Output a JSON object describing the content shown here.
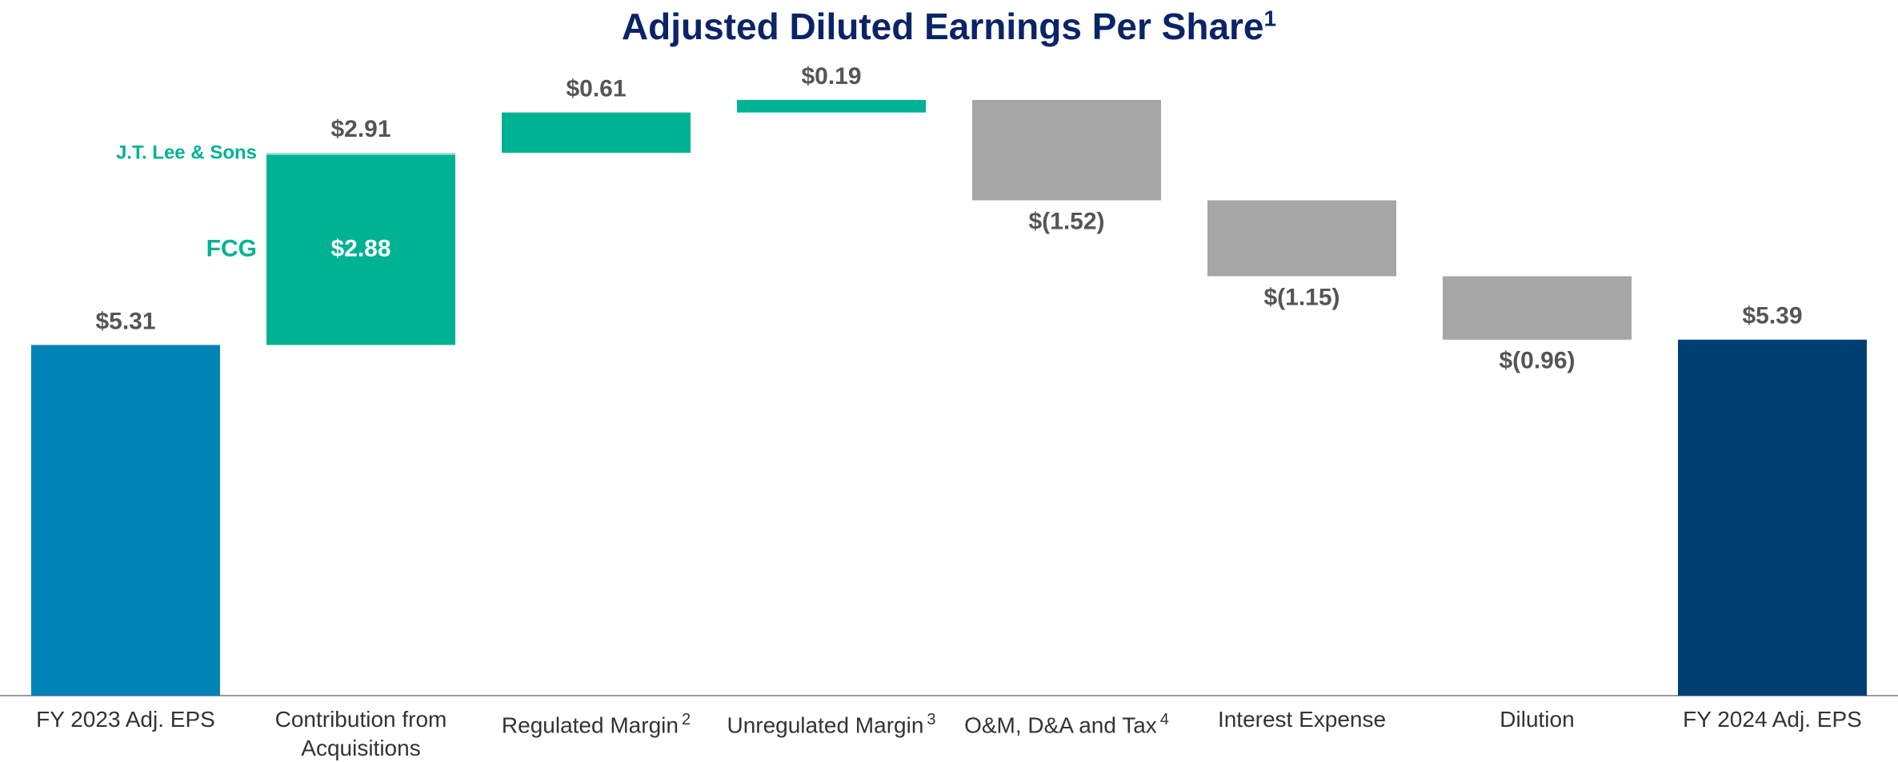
{
  "chart_data": {
    "type": "waterfall",
    "title": "Adjusted Diluted Earnings Per Share",
    "title_footnote": "1",
    "categories": [
      "FY 2023 Adj. EPS",
      "Contribution from Acquisitions",
      "Regulated Margin",
      "Unregulated Margin",
      "O&M, D&A and Tax",
      "Interest Expense",
      "Dilution",
      "FY 2024 Adj. EPS"
    ],
    "category_footnotes": [
      null,
      null,
      "2",
      "3",
      "4",
      null,
      null,
      null
    ],
    "values": [
      5.31,
      2.91,
      0.61,
      0.19,
      -1.52,
      -1.15,
      -0.96,
      5.39
    ],
    "value_labels": [
      "$5.31",
      "$2.91",
      "$0.61",
      "$0.19",
      "$(1.52)",
      "$(1.15)",
      "$(0.96)",
      "$5.39"
    ],
    "totals": [
      true,
      false,
      false,
      false,
      false,
      false,
      false,
      true
    ],
    "colors": [
      "#0083b7",
      "#00b294",
      "#00b294",
      "#00b294",
      "#a6a6a6",
      "#a6a6a6",
      "#a6a6a6",
      "#003f72"
    ],
    "segments": [
      null,
      [
        {
          "name": "FCG",
          "value": 2.88,
          "value_label": "$2.88",
          "color": "#00b294"
        },
        {
          "name": "J.T. Lee & Sons",
          "value": 0.03,
          "color": "#9fe0d3"
        }
      ],
      null,
      null,
      null,
      null,
      null,
      null
    ]
  }
}
